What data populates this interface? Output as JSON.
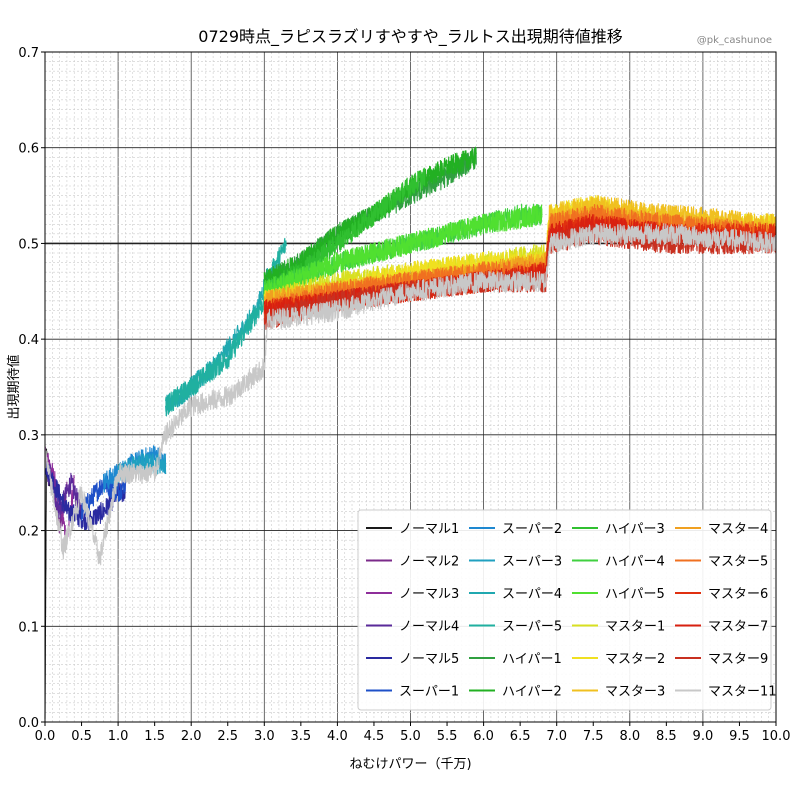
{
  "chart_data": {
    "type": "line",
    "title": "0729時点_ラピスラズリすやすや_ラルトス出現期待値推移",
    "watermark": "@pk_cashunoe",
    "xlabel": "ねむけパワー（千万)",
    "ylabel": "出現期待値",
    "xlim": [
      0,
      10
    ],
    "ylim": [
      0,
      0.7
    ],
    "x_ticks": [
      "0.0",
      "0.5",
      "1.0",
      "1.5",
      "2.0",
      "2.5",
      "3.0",
      "3.5",
      "4.0",
      "4.5",
      "5.0",
      "5.5",
      "6.0",
      "6.5",
      "7.0",
      "7.5",
      "8.0",
      "8.5",
      "9.0",
      "9.5",
      "10.0"
    ],
    "y_ticks": [
      "0.0",
      "0.1",
      "0.2",
      "0.3",
      "0.4",
      "0.5",
      "0.6",
      "0.7"
    ],
    "grid": "major and minor",
    "legend_position": "bottom-right",
    "series": [
      {
        "name": "ノーマル1",
        "color": "#1a1a1a",
        "x_end": 0.08,
        "points": [
          [
            0,
            0.0
          ],
          [
            0.02,
            0.28
          ],
          [
            0.05,
            0.25
          ],
          [
            0.08,
            0.26
          ]
        ]
      },
      {
        "name": "ノーマル2",
        "color": "#7b2a8a",
        "x_end": 0.3,
        "points": [
          [
            0,
            0.27
          ],
          [
            0.1,
            0.26
          ],
          [
            0.2,
            0.2
          ],
          [
            0.3,
            0.24
          ]
        ]
      },
      {
        "name": "ノーマル3",
        "color": "#8e2e9a",
        "x_end": 0.4,
        "points": [
          [
            0,
            0.28
          ],
          [
            0.15,
            0.25
          ],
          [
            0.3,
            0.19
          ],
          [
            0.4,
            0.25
          ]
        ]
      },
      {
        "name": "ノーマル4",
        "color": "#5a2a9a",
        "x_end": 0.5,
        "points": [
          [
            0,
            0.27
          ],
          [
            0.2,
            0.22
          ],
          [
            0.35,
            0.25
          ],
          [
            0.5,
            0.22
          ]
        ]
      },
      {
        "name": "ノーマル5",
        "color": "#2a2aa0",
        "x_end": 1.1,
        "points": [
          [
            0,
            0.27
          ],
          [
            0.3,
            0.22
          ],
          [
            0.6,
            0.21
          ],
          [
            0.8,
            0.22
          ],
          [
            1.0,
            0.24
          ],
          [
            1.1,
            0.24
          ]
        ]
      },
      {
        "name": "スーパー1",
        "color": "#1e50c8",
        "x_end": 1.1,
        "points": [
          [
            0.5,
            0.22
          ],
          [
            0.8,
            0.25
          ],
          [
            1.0,
            0.24
          ],
          [
            1.1,
            0.25
          ]
        ]
      },
      {
        "name": "スーパー2",
        "color": "#1e88d0",
        "x_end": 1.65,
        "points": [
          [
            0.8,
            0.25
          ],
          [
            1.2,
            0.27
          ],
          [
            1.5,
            0.28
          ],
          [
            1.65,
            0.27
          ]
        ]
      },
      {
        "name": "スーパー3",
        "color": "#20a0c0",
        "x_end": 1.65,
        "points": [
          [
            1.0,
            0.26
          ],
          [
            1.3,
            0.27
          ],
          [
            1.65,
            0.27
          ]
        ]
      },
      {
        "name": "スーパー4",
        "color": "#20a8b0",
        "x_end": 3.05,
        "points": [
          [
            1.65,
            0.33
          ],
          [
            2.0,
            0.35
          ],
          [
            2.3,
            0.37
          ],
          [
            2.6,
            0.4
          ],
          [
            2.9,
            0.43
          ],
          [
            3.05,
            0.47
          ]
        ]
      },
      {
        "name": "スーパー5",
        "color": "#20b0a0",
        "x_end": 3.3,
        "points": [
          [
            1.65,
            0.33
          ],
          [
            2.0,
            0.35
          ],
          [
            2.5,
            0.38
          ],
          [
            3.0,
            0.44
          ],
          [
            3.1,
            0.47
          ],
          [
            3.3,
            0.5
          ]
        ]
      },
      {
        "name": "ハイパー1",
        "color": "#30a040",
        "x_end": 5.9,
        "points": [
          [
            3.0,
            0.46
          ],
          [
            3.5,
            0.48
          ],
          [
            4.0,
            0.51
          ],
          [
            4.5,
            0.53
          ],
          [
            5.0,
            0.55
          ],
          [
            5.5,
            0.57
          ],
          [
            5.9,
            0.59
          ]
        ]
      },
      {
        "name": "ハイパー2",
        "color": "#22b022",
        "x_end": 5.9,
        "points": [
          [
            3.0,
            0.46
          ],
          [
            3.5,
            0.48
          ],
          [
            4.0,
            0.51
          ],
          [
            4.5,
            0.53
          ],
          [
            5.0,
            0.56
          ],
          [
            5.5,
            0.58
          ],
          [
            5.9,
            0.59
          ]
        ]
      },
      {
        "name": "ハイパー3",
        "color": "#30c030",
        "x_end": 5.2,
        "points": [
          [
            3.0,
            0.45
          ],
          [
            3.5,
            0.47
          ],
          [
            4.0,
            0.5
          ],
          [
            4.5,
            0.53
          ],
          [
            5.0,
            0.56
          ],
          [
            5.2,
            0.57
          ]
        ]
      },
      {
        "name": "ハイパー4",
        "color": "#40d040",
        "x_end": 6.8,
        "points": [
          [
            3.0,
            0.45
          ],
          [
            4.0,
            0.48
          ],
          [
            5.0,
            0.5
          ],
          [
            5.5,
            0.51
          ],
          [
            6.0,
            0.52
          ],
          [
            6.5,
            0.53
          ],
          [
            6.8,
            0.53
          ]
        ]
      },
      {
        "name": "ハイパー5",
        "color": "#50e030",
        "x_end": 6.8,
        "points": [
          [
            3.0,
            0.45
          ],
          [
            4.0,
            0.48
          ],
          [
            5.0,
            0.5
          ],
          [
            5.5,
            0.51
          ],
          [
            6.0,
            0.52
          ],
          [
            6.8,
            0.53
          ]
        ]
      },
      {
        "name": "マスター1",
        "color": "#d8e020",
        "x_end": 6.85,
        "points": [
          [
            3.0,
            0.44
          ],
          [
            4.0,
            0.46
          ],
          [
            5.0,
            0.47
          ],
          [
            6.0,
            0.48
          ],
          [
            6.85,
            0.49
          ]
        ]
      },
      {
        "name": "マスター2",
        "color": "#f0e020",
        "x_end": 10.0,
        "points": [
          [
            3.0,
            0.44
          ],
          [
            4.0,
            0.45
          ],
          [
            5.0,
            0.47
          ],
          [
            6.0,
            0.48
          ],
          [
            6.85,
            0.48
          ],
          [
            6.9,
            0.53
          ],
          [
            7.5,
            0.54
          ],
          [
            8.0,
            0.53
          ],
          [
            9.0,
            0.52
          ],
          [
            10.0,
            0.52
          ]
        ]
      },
      {
        "name": "マスター3",
        "color": "#f0c020",
        "x_end": 10.0,
        "points": [
          [
            3.0,
            0.44
          ],
          [
            4.0,
            0.45
          ],
          [
            5.0,
            0.46
          ],
          [
            6.0,
            0.47
          ],
          [
            6.85,
            0.48
          ],
          [
            6.9,
            0.53
          ],
          [
            7.5,
            0.54
          ],
          [
            8.5,
            0.53
          ],
          [
            10.0,
            0.52
          ]
        ]
      },
      {
        "name": "マスター4",
        "color": "#f0a020",
        "x_end": 10.0,
        "points": [
          [
            3.0,
            0.44
          ],
          [
            4.0,
            0.45
          ],
          [
            5.0,
            0.46
          ],
          [
            6.0,
            0.47
          ],
          [
            6.85,
            0.48
          ],
          [
            6.9,
            0.52
          ],
          [
            7.5,
            0.53
          ],
          [
            8.5,
            0.52
          ],
          [
            10.0,
            0.51
          ]
        ]
      },
      {
        "name": "マスター5",
        "color": "#f07020",
        "x_end": 10.0,
        "points": [
          [
            3.0,
            0.43
          ],
          [
            4.0,
            0.45
          ],
          [
            5.0,
            0.46
          ],
          [
            6.0,
            0.47
          ],
          [
            6.85,
            0.47
          ],
          [
            6.9,
            0.52
          ],
          [
            7.5,
            0.53
          ],
          [
            8.5,
            0.52
          ],
          [
            10.0,
            0.51
          ]
        ]
      },
      {
        "name": "マスター6",
        "color": "#e03010",
        "x_end": 10.0,
        "points": [
          [
            3.0,
            0.43
          ],
          [
            4.0,
            0.44
          ],
          [
            5.0,
            0.45
          ],
          [
            6.0,
            0.46
          ],
          [
            6.85,
            0.47
          ],
          [
            6.9,
            0.51
          ],
          [
            7.5,
            0.52
          ],
          [
            8.5,
            0.51
          ],
          [
            10.0,
            0.51
          ]
        ]
      },
      {
        "name": "マスター7",
        "color": "#d82010",
        "x_end": 10.0,
        "points": [
          [
            3.0,
            0.43
          ],
          [
            4.0,
            0.44
          ],
          [
            5.0,
            0.45
          ],
          [
            6.0,
            0.46
          ],
          [
            6.85,
            0.47
          ],
          [
            6.9,
            0.51
          ],
          [
            7.5,
            0.52
          ],
          [
            8.5,
            0.51
          ],
          [
            10.0,
            0.5
          ]
        ]
      },
      {
        "name": "マスター9",
        "color": "#c83020",
        "x_end": 10.0,
        "points": [
          [
            3.0,
            0.42
          ],
          [
            4.0,
            0.44
          ],
          [
            5.0,
            0.45
          ],
          [
            6.0,
            0.46
          ],
          [
            6.85,
            0.46
          ],
          [
            6.9,
            0.5
          ],
          [
            7.5,
            0.51
          ],
          [
            8.5,
            0.5
          ],
          [
            10.0,
            0.5
          ]
        ]
      },
      {
        "name": "マスター11",
        "color": "#c8c8c8",
        "x_end": 10.0,
        "points": [
          [
            0,
            0.28
          ],
          [
            0.25,
            0.18
          ],
          [
            0.5,
            0.24
          ],
          [
            0.75,
            0.17
          ],
          [
            1.0,
            0.26
          ],
          [
            1.5,
            0.26
          ],
          [
            1.65,
            0.3
          ],
          [
            2.0,
            0.33
          ],
          [
            2.5,
            0.34
          ],
          [
            3.0,
            0.37
          ],
          [
            3.05,
            0.42
          ],
          [
            4.0,
            0.43
          ],
          [
            5.0,
            0.45
          ],
          [
            6.0,
            0.46
          ],
          [
            6.85,
            0.46
          ],
          [
            6.9,
            0.5
          ],
          [
            7.5,
            0.51
          ],
          [
            8.5,
            0.51
          ],
          [
            10.0,
            0.5
          ]
        ]
      }
    ]
  }
}
